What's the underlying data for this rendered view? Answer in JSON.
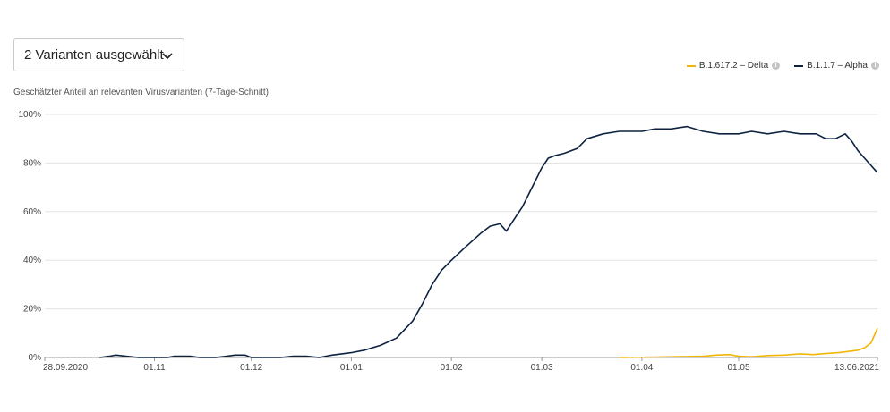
{
  "selector": {
    "label": "2 Varianten ausgewählt"
  },
  "chart_data": {
    "type": "line",
    "ylabel": "Geschätzter Anteil an relevanten Virusvarianten (7-Tage-Schnitt)",
    "ylim": [
      0,
      100
    ],
    "yticks": [
      0,
      20,
      40,
      60,
      80,
      100
    ],
    "ytick_labels": [
      "0%",
      "20%",
      "40%",
      "60%",
      "80%",
      "100%"
    ],
    "xlim": [
      "2020-09-28",
      "2021-06-13"
    ],
    "xticks": [
      "2020-09-28",
      "2020-11-01",
      "2020-12-01",
      "2021-01-01",
      "2021-02-01",
      "2021-03-01",
      "2021-04-01",
      "2021-05-01",
      "2021-06-13"
    ],
    "xtick_labels": [
      "28.09.2020",
      "01.11",
      "01.12",
      "01.01",
      "01.02",
      "01.03",
      "01.04",
      "01.05",
      "13.06.2021"
    ],
    "grid": true,
    "legend_position": "top-right",
    "series": [
      {
        "name": "B.1.617.2 – Delta",
        "color": "#f2b705",
        "x": [
          "2021-03-25",
          "2021-04-05",
          "2021-04-15",
          "2021-04-20",
          "2021-04-24",
          "2021-04-28",
          "2021-05-01",
          "2021-05-05",
          "2021-05-10",
          "2021-05-15",
          "2021-05-20",
          "2021-05-24",
          "2021-05-28",
          "2021-06-01",
          "2021-06-04",
          "2021-06-07",
          "2021-06-09",
          "2021-06-11",
          "2021-06-12",
          "2021-06-13"
        ],
        "y": [
          0,
          0.2,
          0.4,
          0.5,
          1,
          1.2,
          0.5,
          0.3,
          0.8,
          1,
          1.5,
          1.2,
          1.6,
          2,
          2.5,
          3,
          4,
          6,
          9,
          12
        ]
      },
      {
        "name": "B.1.1.7 – Alpha",
        "color": "#0d2240",
        "x": [
          "2020-10-15",
          "2020-10-18",
          "2020-10-20",
          "2020-10-27",
          "2020-11-01",
          "2020-11-05",
          "2020-11-07",
          "2020-11-12",
          "2020-11-15",
          "2020-11-20",
          "2020-11-26",
          "2020-11-29",
          "2020-12-01",
          "2020-12-10",
          "2020-12-14",
          "2020-12-18",
          "2020-12-22",
          "2020-12-26",
          "2020-12-29",
          "2021-01-01",
          "2021-01-05",
          "2021-01-10",
          "2021-01-15",
          "2021-01-20",
          "2021-01-23",
          "2021-01-26",
          "2021-01-29",
          "2021-02-01",
          "2021-02-05",
          "2021-02-10",
          "2021-02-13",
          "2021-02-16",
          "2021-02-18",
          "2021-02-21",
          "2021-02-23",
          "2021-02-26",
          "2021-03-01",
          "2021-03-03",
          "2021-03-05",
          "2021-03-08",
          "2021-03-12",
          "2021-03-15",
          "2021-03-20",
          "2021-03-25",
          "2021-04-01",
          "2021-04-05",
          "2021-04-10",
          "2021-04-15",
          "2021-04-20",
          "2021-04-25",
          "2021-05-01",
          "2021-05-05",
          "2021-05-10",
          "2021-05-15",
          "2021-05-20",
          "2021-05-25",
          "2021-05-28",
          "2021-05-31",
          "2021-06-03",
          "2021-06-05",
          "2021-06-07",
          "2021-06-09",
          "2021-06-11",
          "2021-06-13"
        ],
        "y": [
          0,
          0.5,
          1,
          0,
          0,
          0,
          0.5,
          0.5,
          0,
          0,
          1,
          1,
          0,
          0,
          0.5,
          0.5,
          0,
          1,
          1.5,
          2,
          3,
          5,
          8,
          15,
          22,
          30,
          36,
          40,
          45,
          51,
          54,
          55,
          52,
          58,
          62,
          70,
          78,
          82,
          83,
          84,
          86,
          90,
          92,
          93,
          93,
          94,
          94,
          95,
          93,
          92,
          92,
          93,
          92,
          93,
          92,
          92,
          90,
          90,
          92,
          89,
          85,
          82,
          79,
          76
        ]
      }
    ]
  }
}
